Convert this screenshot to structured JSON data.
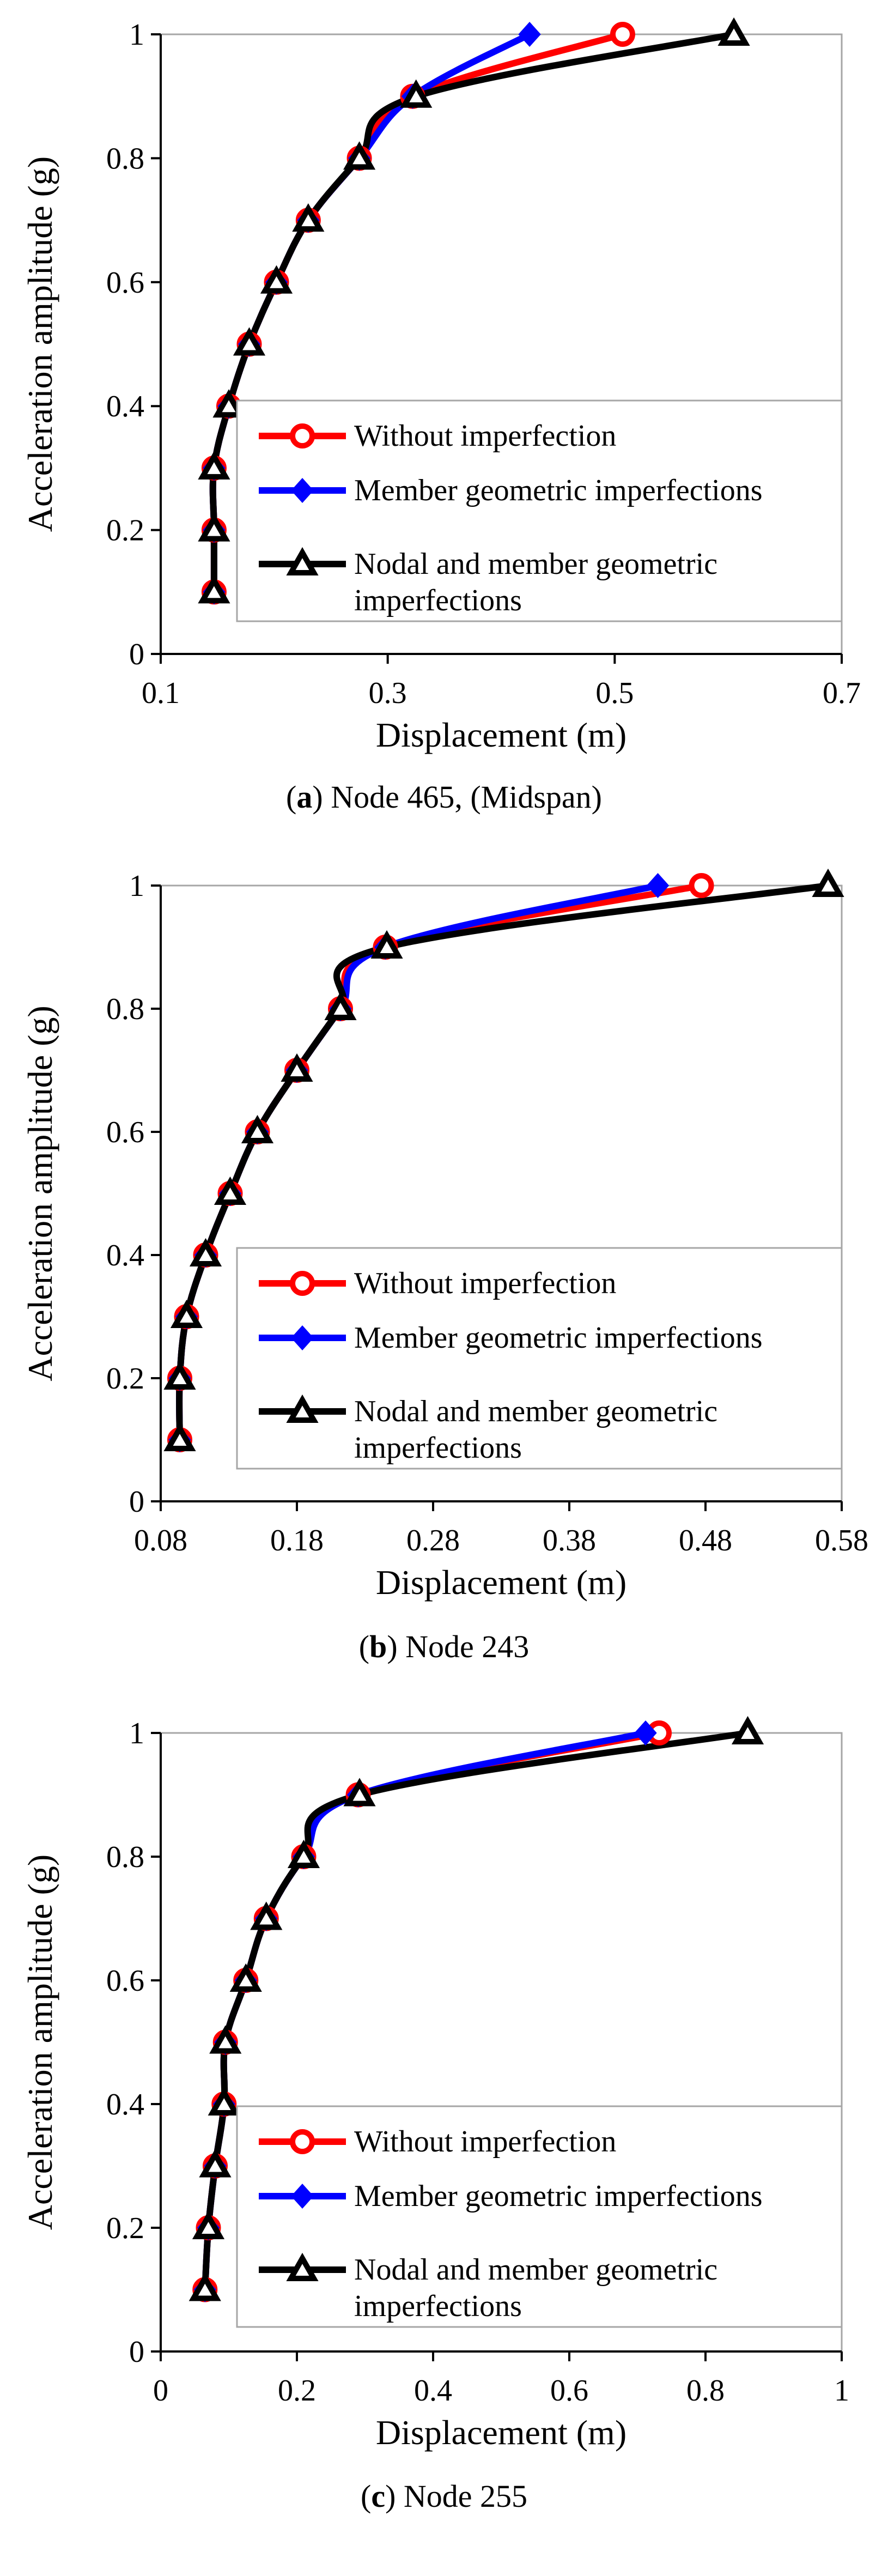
{
  "colors": {
    "without": "#ff0000",
    "member": "#0000ff",
    "nodal": "#000000",
    "frame": "#a6a6a6"
  },
  "legend_labels": {
    "without": "Without  imperfection",
    "member": "Member geometric imperfections",
    "nodal_line1": "Nodal and member geometric",
    "nodal_line2": "imperfections"
  },
  "chart_data": [
    {
      "type": "line",
      "caption_letter": "a",
      "caption_rest": ") Node 465, (Midspan)",
      "xlabel": "Displacement (m)",
      "ylabel": "Acceleration amplitude (g)",
      "xlim": [
        0.1,
        0.7
      ],
      "ylim": [
        0,
        1
      ],
      "xticks": [
        "0.1",
        "0.3",
        "0.5",
        "0.7"
      ],
      "yticks": [
        "0",
        "0.2",
        "0.4",
        "0.6",
        "0.8",
        "1"
      ],
      "y": [
        0.1,
        0.2,
        0.3,
        0.4,
        0.5,
        0.6,
        0.7,
        0.8,
        0.9,
        1.0
      ],
      "series": [
        {
          "name": "Without  imperfection",
          "marker": "circle",
          "x": [
            0.147,
            0.147,
            0.147,
            0.16,
            0.178,
            0.202,
            0.23,
            0.275,
            0.322,
            0.507
          ]
        },
        {
          "name": "Member geometric imperfections",
          "marker": "diamond",
          "x": [
            0.147,
            0.147,
            0.147,
            0.16,
            0.178,
            0.202,
            0.23,
            0.275,
            0.322,
            0.425
          ]
        },
        {
          "name": "Nodal and member geometric imperfections",
          "marker": "triangle",
          "x": [
            0.147,
            0.147,
            0.147,
            0.16,
            0.178,
            0.202,
            0.23,
            0.275,
            0.325,
            0.605
          ]
        }
      ]
    },
    {
      "type": "line",
      "caption_letter": "b",
      "caption_rest": ") Node 243",
      "xlabel": "Displacement (m)",
      "ylabel": "Acceleration amplitude (g)",
      "xlim": [
        0.08,
        0.58
      ],
      "ylim": [
        0,
        1
      ],
      "xticks": [
        "0.08",
        "0.18",
        "0.28",
        "0.38",
        "0.48",
        "0.58"
      ],
      "yticks": [
        "0",
        "0.2",
        "0.4",
        "0.6",
        "0.8",
        "1"
      ],
      "y": [
        0.1,
        0.2,
        0.3,
        0.4,
        0.5,
        0.6,
        0.7,
        0.8,
        0.9,
        1.0
      ],
      "series": [
        {
          "name": "Without  imperfection",
          "marker": "circle",
          "x": [
            0.094,
            0.094,
            0.099,
            0.113,
            0.131,
            0.151,
            0.18,
            0.212,
            0.245,
            0.477
          ]
        },
        {
          "name": "Member geometric imperfections",
          "marker": "diamond",
          "x": [
            0.094,
            0.094,
            0.099,
            0.113,
            0.131,
            0.151,
            0.18,
            0.212,
            0.245,
            0.445
          ]
        },
        {
          "name": "Nodal and member geometric imperfections",
          "marker": "triangle",
          "x": [
            0.094,
            0.094,
            0.099,
            0.113,
            0.131,
            0.151,
            0.18,
            0.212,
            0.246,
            0.57
          ]
        }
      ]
    },
    {
      "type": "line",
      "caption_letter": "c",
      "caption_rest": ") Node 255",
      "xlabel": "Displacement (m)",
      "ylabel": "Acceleration amplitude (g)",
      "xlim": [
        0,
        1
      ],
      "ylim": [
        0,
        1
      ],
      "xticks": [
        "0",
        "0.2",
        "0.4",
        "0.6",
        "0.8",
        "1"
      ],
      "yticks": [
        "0",
        "0.2",
        "0.4",
        "0.6",
        "0.8",
        "1"
      ],
      "y": [
        0.1,
        0.2,
        0.3,
        0.4,
        0.5,
        0.6,
        0.7,
        0.8,
        0.9,
        1.0
      ],
      "series": [
        {
          "name": "Without  imperfection",
          "marker": "circle",
          "x": [
            0.065,
            0.07,
            0.08,
            0.093,
            0.095,
            0.125,
            0.155,
            0.21,
            0.29,
            0.732
          ]
        },
        {
          "name": "Member geometric imperfections",
          "marker": "diamond",
          "x": [
            0.065,
            0.07,
            0.08,
            0.093,
            0.095,
            0.125,
            0.155,
            0.21,
            0.29,
            0.712
          ]
        },
        {
          "name": "Nodal and member geometric imperfections",
          "marker": "triangle",
          "x": [
            0.065,
            0.07,
            0.08,
            0.093,
            0.095,
            0.125,
            0.155,
            0.21,
            0.292,
            0.862
          ]
        }
      ]
    }
  ]
}
